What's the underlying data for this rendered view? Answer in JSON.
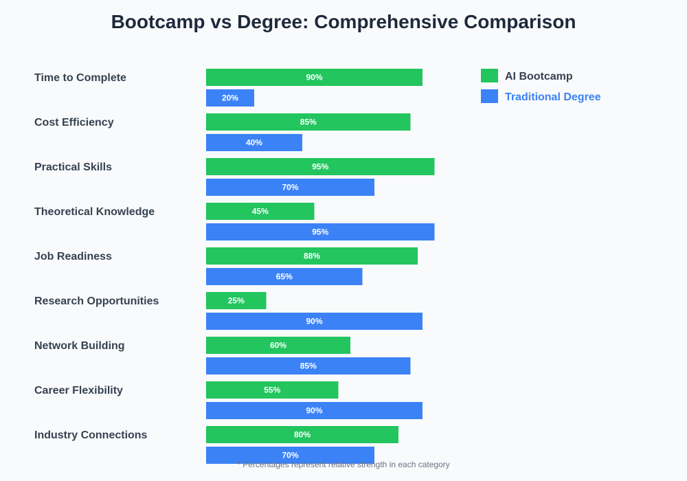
{
  "chart_data": {
    "type": "bar",
    "orientation": "horizontal",
    "title": "Bootcamp vs Degree: Comprehensive Comparison",
    "categories": [
      "Time to Complete",
      "Cost Efficiency",
      "Practical Skills",
      "Theoretical Knowledge",
      "Job Readiness",
      "Research Opportunities",
      "Network Building",
      "Career Flexibility",
      "Industry Connections"
    ],
    "series": [
      {
        "name": "AI Bootcamp",
        "color": "#22c55e",
        "values": [
          90,
          85,
          95,
          45,
          88,
          25,
          60,
          55,
          80
        ]
      },
      {
        "name": "Traditional Degree",
        "color": "#3b82f6",
        "values": [
          20,
          40,
          70,
          95,
          65,
          90,
          85,
          90,
          70
        ]
      }
    ],
    "value_format": "percent",
    "xlim": [
      0,
      100
    ],
    "grid": false,
    "legend_placement": "top-right",
    "legend_text_colors": [
      "#374151",
      "#3b82f6"
    ],
    "footnote": "* Percentages represent relative strength in each category"
  }
}
